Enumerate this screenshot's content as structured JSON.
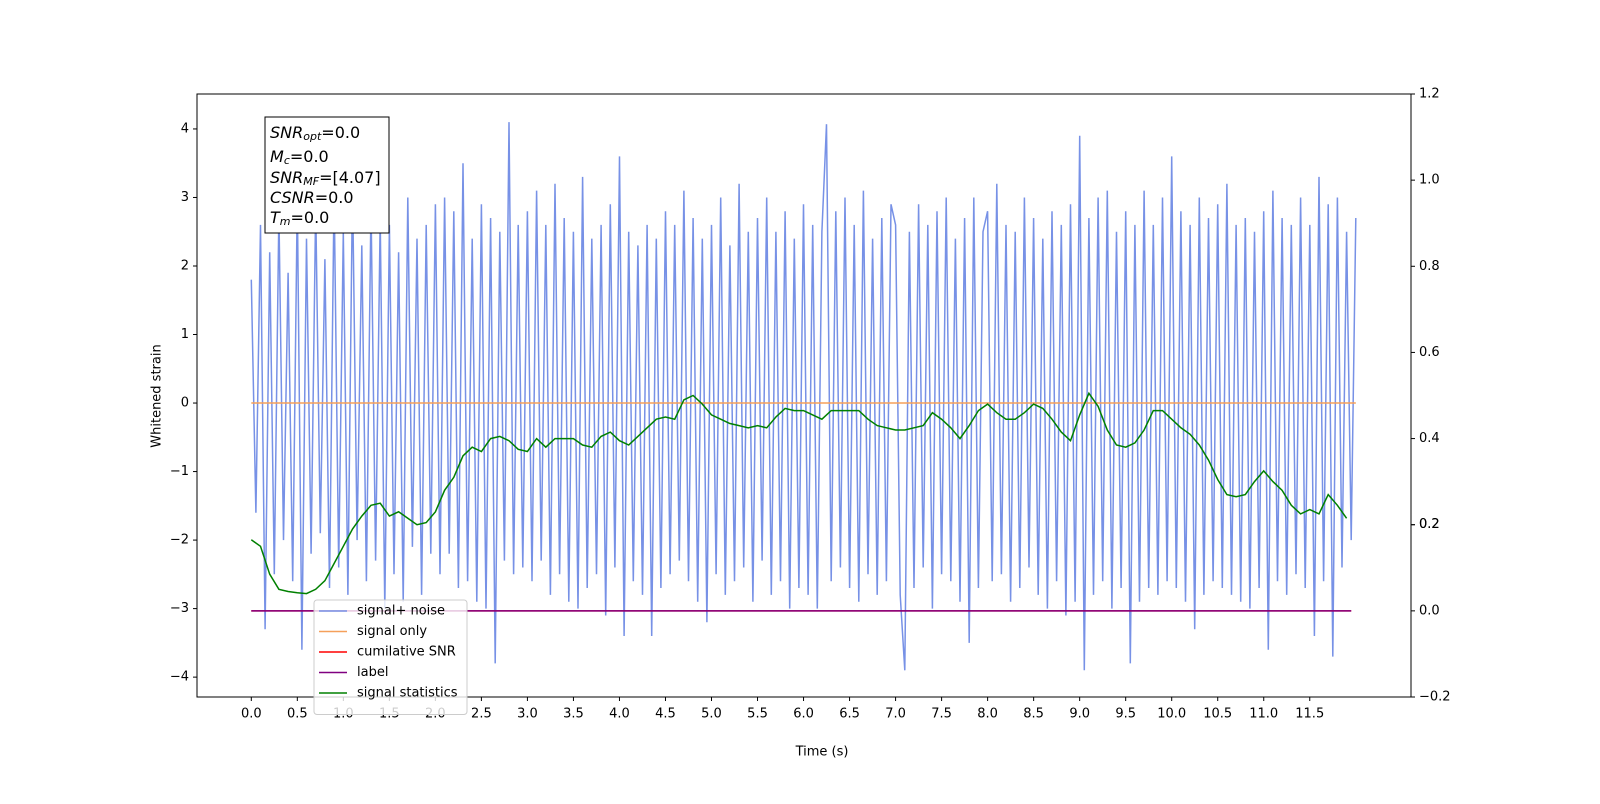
{
  "chart_data": {
    "type": "line",
    "xlabel": "Time (s)",
    "ylabel": "Whitened strain",
    "xlim": [
      -0.59,
      12.6
    ],
    "ylim": [
      -4.29,
      4.51
    ],
    "y2lim": [
      -0.2,
      1.2
    ],
    "xticks": [
      {
        "value": 0,
        "label": "0.0"
      },
      {
        "value": 0.5,
        "label": "0.5"
      },
      {
        "value": 1,
        "label": "1.0"
      },
      {
        "value": 1.5,
        "label": "1.5"
      },
      {
        "value": 2,
        "label": "2.0"
      },
      {
        "value": 2.5,
        "label": "2.5"
      },
      {
        "value": 3,
        "label": "3.0"
      },
      {
        "value": 3.5,
        "label": "3.5"
      },
      {
        "value": 4,
        "label": "4.0"
      },
      {
        "value": 4.5,
        "label": "4.5"
      },
      {
        "value": 5,
        "label": "5.0"
      },
      {
        "value": 5.5,
        "label": "5.5"
      },
      {
        "value": 6,
        "label": "6.0"
      },
      {
        "value": 6.5,
        "label": "6.5"
      },
      {
        "value": 7,
        "label": "7.0"
      },
      {
        "value": 7.5,
        "label": "7.5"
      },
      {
        "value": 8,
        "label": "8.0"
      },
      {
        "value": 8.5,
        "label": "8.5"
      },
      {
        "value": 9,
        "label": "9.0"
      },
      {
        "value": 9.5,
        "label": "9.5"
      },
      {
        "value": 10,
        "label": "10.0"
      },
      {
        "value": 10.5,
        "label": "10.5"
      },
      {
        "value": 11,
        "label": "11.0"
      },
      {
        "value": 11.5,
        "label": "11.5"
      }
    ],
    "yticks": [
      {
        "value": -4,
        "label": "−4"
      },
      {
        "value": -3,
        "label": "−3"
      },
      {
        "value": -2,
        "label": "−2"
      },
      {
        "value": -1,
        "label": "−1"
      },
      0,
      1,
      2,
      3,
      4
    ],
    "y2ticks": [
      {
        "value": -0.2,
        "label": "−0.2"
      },
      {
        "value": 0,
        "label": "0.0"
      },
      0.2,
      0.4,
      0.6,
      0.8,
      {
        "value": 1,
        "label": "1.0"
      },
      0.2,
      1.2
    ],
    "annotations": [
      {
        "main": "SNR",
        "sub": "opt",
        "rest": "=0.0"
      },
      {
        "main": "M",
        "sub": "c",
        "rest": "=0.0"
      },
      {
        "main": "SNR",
        "sub": "MF",
        "rest": "=[4.07]"
      },
      {
        "main": "CSNR",
        "sub": "",
        "rest": "=0.0"
      },
      {
        "main": "T",
        "sub": "m",
        "rest": "=0.0"
      }
    ],
    "series": [
      {
        "name": "signal+ noise",
        "color": "#7791e6",
        "axis": "y",
        "x": [
          0,
          0.05,
          0.1,
          0.15,
          0.2,
          0.25,
          0.3,
          0.35,
          0.4,
          0.45,
          0.5,
          0.55,
          0.6,
          0.65,
          0.7,
          0.75,
          0.8,
          0.85,
          0.9,
          0.95,
          1,
          1.05,
          1.1,
          1.15,
          1.2,
          1.25,
          1.3,
          1.35,
          1.4,
          1.45,
          1.5,
          1.55,
          1.6,
          1.65,
          1.7,
          1.75,
          1.8,
          1.85,
          1.9,
          1.95,
          2,
          2.05,
          2.1,
          2.15,
          2.2,
          2.25,
          2.3,
          2.35,
          2.4,
          2.45,
          2.5,
          2.55,
          2.6,
          2.65,
          2.7,
          2.75,
          2.8,
          2.85,
          2.9,
          2.95,
          3,
          3.05,
          3.1,
          3.15,
          3.2,
          3.25,
          3.3,
          3.35,
          3.4,
          3.45,
          3.5,
          3.55,
          3.6,
          3.65,
          3.7,
          3.75,
          3.8,
          3.85,
          3.9,
          3.95,
          4,
          4.05,
          4.1,
          4.15,
          4.2,
          4.25,
          4.3,
          4.35,
          4.4,
          4.45,
          4.5,
          4.55,
          4.6,
          4.65,
          4.7,
          4.75,
          4.8,
          4.85,
          4.9,
          4.95,
          5,
          5.05,
          5.1,
          5.15,
          5.2,
          5.25,
          5.3,
          5.35,
          5.4,
          5.45,
          5.5,
          5.55,
          5.6,
          5.65,
          5.7,
          5.75,
          5.8,
          5.85,
          5.9,
          5.95,
          6,
          6.05,
          6.1,
          6.15,
          6.2,
          6.25,
          6.3,
          6.35,
          6.4,
          6.45,
          6.5,
          6.55,
          6.6,
          6.65,
          6.7,
          6.75,
          6.8,
          6.85,
          6.9,
          6.95,
          7,
          7.05,
          7.1,
          7.15,
          7.2,
          7.25,
          7.3,
          7.35,
          7.4,
          7.45,
          7.5,
          7.55,
          7.6,
          7.65,
          7.7,
          7.75,
          7.8,
          7.85,
          7.9,
          7.95,
          8,
          8.05,
          8.1,
          8.15,
          8.2,
          8.25,
          8.3,
          8.35,
          8.4,
          8.45,
          8.5,
          8.55,
          8.6,
          8.65,
          8.7,
          8.75,
          8.8,
          8.85,
          8.9,
          8.95,
          9,
          9.05,
          9.1,
          9.15,
          9.2,
          9.25,
          9.3,
          9.35,
          9.4,
          9.45,
          9.5,
          9.55,
          9.6,
          9.65,
          9.7,
          9.75,
          9.8,
          9.85,
          9.9,
          9.95,
          10,
          10.05,
          10.1,
          10.15,
          10.2,
          10.25,
          10.3,
          10.35,
          10.4,
          10.45,
          10.5,
          10.55,
          10.6,
          10.65,
          10.7,
          10.75,
          10.8,
          10.85,
          10.9,
          10.95,
          11,
          11.05,
          11.1,
          11.15,
          11.2,
          11.25,
          11.3,
          11.35,
          11.4,
          11.45,
          11.5,
          11.55,
          11.6,
          11.65,
          11.7,
          11.75,
          11.8,
          11.85,
          11.9,
          11.95,
          12
        ],
        "values": [
          1.8,
          -1.6,
          2.6,
          -3.3,
          2.2,
          -2.5,
          2.8,
          -2.0,
          1.9,
          -2.6,
          3.0,
          -3.6,
          2.4,
          -2.2,
          2.9,
          -1.9,
          2.1,
          -2.7,
          3.1,
          -2.4,
          2.5,
          -2.8,
          3.2,
          -2.0,
          2.3,
          -2.6,
          2.9,
          -2.3,
          2.7,
          -3.0,
          2.6,
          -2.5,
          2.2,
          -2.9,
          3.0,
          -2.1,
          2.4,
          -2.8,
          2.6,
          -2.2,
          2.9,
          -2.5,
          3.0,
          -2.2,
          2.8,
          -2.7,
          3.5,
          -2.6,
          2.4,
          -2.9,
          2.9,
          -3.0,
          2.7,
          -3.8,
          2.5,
          -2.3,
          4.1,
          -2.5,
          2.6,
          -2.4,
          2.8,
          -2.6,
          3.1,
          -2.3,
          2.6,
          -2.8,
          3.2,
          -2.5,
          2.7,
          -2.9,
          2.5,
          -3.0,
          3.3,
          -2.7,
          2.4,
          -2.5,
          2.6,
          -3.1,
          2.9,
          -2.4,
          3.6,
          -3.4,
          2.5,
          -2.6,
          2.3,
          -2.8,
          2.6,
          -3.4,
          2.4,
          -2.7,
          2.8,
          -2.5,
          2.6,
          -2.3,
          3.1,
          -2.6,
          2.7,
          -2.9,
          2.4,
          -3.2,
          2.6,
          -2.5,
          3.0,
          -2.8,
          2.3,
          -2.6,
          3.2,
          -2.4,
          2.5,
          -2.9,
          2.7,
          -2.3,
          3.0,
          -2.8,
          2.5,
          -2.6,
          2.8,
          -3.0,
          2.4,
          -2.7,
          2.9,
          -2.8,
          2.6,
          -3.0,
          2.5,
          4.07,
          -2.6,
          2.8,
          -2.4,
          3.0,
          -2.7,
          2.6,
          -2.9,
          3.1,
          -2.5,
          2.4,
          -2.8,
          2.7,
          -2.6,
          2.9,
          2.6,
          -2.8,
          -3.9,
          2.5,
          -2.7,
          2.9,
          -2.4,
          2.6,
          -3.0,
          2.8,
          -2.5,
          3.0,
          -2.6,
          2.4,
          -2.9,
          2.7,
          -3.5,
          3.0,
          -2.7,
          2.5,
          2.8,
          -2.6,
          3.2,
          -2.5,
          2.6,
          -2.9,
          2.5,
          -2.7,
          3.0,
          -2.4,
          2.7,
          -2.8,
          2.4,
          -3.0,
          2.8,
          -2.6,
          2.6,
          -3.1,
          2.9,
          -2.9,
          3.9,
          -3.9,
          2.7,
          -2.8,
          3.0,
          -2.6,
          3.1,
          -3.0,
          2.5,
          -2.7,
          2.8,
          -3.8,
          2.6,
          -2.9,
          3.1,
          -2.7,
          2.6,
          -2.8,
          3.0,
          -2.6,
          3.6,
          -2.7,
          2.8,
          -2.9,
          2.6,
          -3.3,
          3.0,
          -2.8,
          2.7,
          -2.6,
          2.9,
          -2.7,
          3.2,
          -2.8,
          2.6,
          -2.9,
          2.7,
          -3.0,
          2.5,
          -2.7,
          2.8,
          -3.6,
          3.1,
          -2.6,
          2.7,
          -2.8,
          2.6,
          -2.5,
          3.0,
          -2.7,
          2.6,
          -3.4,
          3.3,
          -2.6,
          2.9,
          -3.7,
          3.0,
          -2.4,
          2.5,
          -2.0,
          2.7
        ]
      },
      {
        "name": "signal only",
        "color": "#f5a05a",
        "axis": "y",
        "x": [
          0,
          12
        ],
        "values": [
          0,
          0
        ]
      },
      {
        "name": "cumilative SNR",
        "color": "#ff0000",
        "axis": "y2",
        "x": [
          0,
          11.95
        ],
        "values": [
          0,
          0
        ]
      },
      {
        "name": "label",
        "color": "#800080",
        "axis": "y2",
        "x": [
          0,
          11.95
        ],
        "values": [
          0,
          0
        ]
      },
      {
        "name": "signal statistics",
        "color": "#008000",
        "axis": "y2",
        "x": [
          0,
          0.1,
          0.2,
          0.3,
          0.4,
          0.5,
          0.6,
          0.7,
          0.8,
          0.9,
          1,
          1.1,
          1.2,
          1.3,
          1.4,
          1.5,
          1.6,
          1.7,
          1.8,
          1.9,
          2,
          2.1,
          2.2,
          2.3,
          2.4,
          2.5,
          2.6,
          2.7,
          2.8,
          2.9,
          3,
          3.1,
          3.2,
          3.3,
          3.4,
          3.5,
          3.6,
          3.7,
          3.8,
          3.9,
          4,
          4.1,
          4.2,
          4.3,
          4.4,
          4.5,
          4.6,
          4.7,
          4.8,
          4.9,
          5,
          5.1,
          5.2,
          5.3,
          5.4,
          5.5,
          5.6,
          5.7,
          5.8,
          5.9,
          6,
          6.1,
          6.2,
          6.3,
          6.4,
          6.5,
          6.6,
          6.7,
          6.8,
          6.9,
          7,
          7.1,
          7.2,
          7.3,
          7.4,
          7.5,
          7.6,
          7.7,
          7.8,
          7.9,
          8,
          8.1,
          8.2,
          8.3,
          8.4,
          8.5,
          8.6,
          8.7,
          8.8,
          8.9,
          9,
          9.1,
          9.2,
          9.3,
          9.4,
          9.5,
          9.6,
          9.7,
          9.8,
          9.9,
          10,
          10.1,
          10.2,
          10.3,
          10.4,
          10.5,
          10.6,
          10.7,
          10.8,
          10.9,
          11,
          11.1,
          11.2,
          11.3,
          11.4,
          11.5,
          11.6,
          11.7,
          11.8,
          11.9
        ],
        "values": [
          0.165,
          0.15,
          0.085,
          0.05,
          0.045,
          0.042,
          0.04,
          0.05,
          0.07,
          0.11,
          0.15,
          0.19,
          0.22,
          0.245,
          0.25,
          0.22,
          0.23,
          0.215,
          0.2,
          0.205,
          0.23,
          0.28,
          0.31,
          0.36,
          0.38,
          0.37,
          0.4,
          0.405,
          0.395,
          0.375,
          0.37,
          0.4,
          0.38,
          0.4,
          0.4,
          0.4,
          0.385,
          0.38,
          0.405,
          0.415,
          0.395,
          0.385,
          0.405,
          0.425,
          0.445,
          0.45,
          0.445,
          0.49,
          0.5,
          0.48,
          0.455,
          0.445,
          0.435,
          0.43,
          0.425,
          0.43,
          0.425,
          0.45,
          0.47,
          0.465,
          0.465,
          0.455,
          0.445,
          0.465,
          0.465,
          0.465,
          0.465,
          0.445,
          0.43,
          0.425,
          0.42,
          0.42,
          0.425,
          0.43,
          0.46,
          0.445,
          0.425,
          0.4,
          0.43,
          0.465,
          0.48,
          0.46,
          0.445,
          0.445,
          0.46,
          0.48,
          0.47,
          0.445,
          0.415,
          0.395,
          0.455,
          0.505,
          0.475,
          0.42,
          0.385,
          0.38,
          0.39,
          0.42,
          0.465,
          0.465,
          0.445,
          0.425,
          0.41,
          0.385,
          0.35,
          0.305,
          0.27,
          0.265,
          0.27,
          0.3,
          0.325,
          0.3,
          0.28,
          0.245,
          0.225,
          0.235,
          0.225,
          0.27,
          0.245,
          0.215
        ]
      }
    ]
  }
}
